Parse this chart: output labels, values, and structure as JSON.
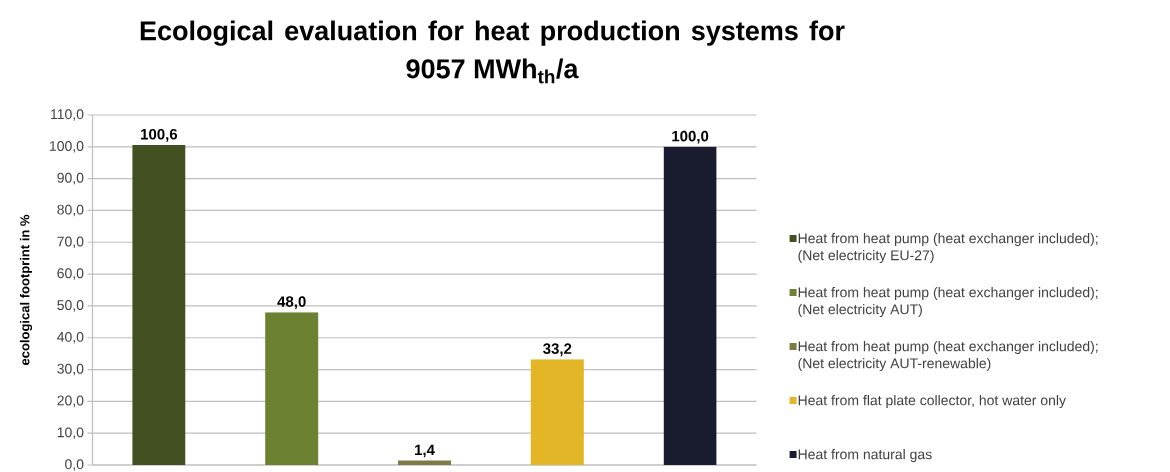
{
  "chart_data": {
    "type": "bar",
    "title": "Ecological evaluation for heat production systems for 9057 MWh$_{th}$/a",
    "ylabel": "ecological footprint in %",
    "categories": [
      null,
      null,
      null,
      null,
      null
    ],
    "series": [
      {
        "name": "Heat from heat pump (heat exchanger included); (Net electricity EU-27)",
        "color": "#435022",
        "values": [
          100.6,
          null,
          null,
          null,
          null
        ],
        "value_labels": [
          "100,6",
          null,
          null,
          null,
          null
        ]
      },
      {
        "name": "Heat from heat pump (heat exchanger included); (Net electricity AUT)",
        "color": "#6c8132",
        "values": [
          null,
          48.0,
          null,
          null,
          null
        ],
        "value_labels": [
          null,
          "48,0",
          null,
          null,
          null
        ]
      },
      {
        "name": "Heat from heat pump (heat exchanger included); (Net electricity AUT-renewable)",
        "color": "#7c7a45",
        "values": [
          null,
          null,
          1.4,
          null,
          null
        ],
        "value_labels": [
          null,
          null,
          "1,4",
          null,
          null
        ]
      },
      {
        "name": "Heat from flat plate collector, hot water only",
        "color": "#e2b627",
        "values": [
          null,
          null,
          null,
          33.2,
          null
        ],
        "value_labels": [
          null,
          null,
          null,
          "33,2",
          null
        ]
      },
      {
        "name": "Heat from natural gas",
        "color": "#191c2e",
        "values": [
          null,
          null,
          null,
          null,
          100.0
        ],
        "value_labels": [
          null,
          null,
          null,
          null,
          "100,0"
        ]
      }
    ],
    "ylim": [
      0,
      110
    ],
    "yticks": [
      {
        "value": 0,
        "label": "0,0"
      },
      {
        "value": 10,
        "label": "10,0"
      },
      {
        "value": 20,
        "label": "20,0"
      },
      {
        "value": 30,
        "label": "30,0"
      },
      {
        "value": 40,
        "label": "40,0"
      },
      {
        "value": 50,
        "label": "50,0"
      },
      {
        "value": 60,
        "label": "60,0"
      },
      {
        "value": 70,
        "label": "70,0"
      },
      {
        "value": 80,
        "label": "80,0"
      },
      {
        "value": 90,
        "label": "90,0"
      },
      {
        "value": 100,
        "label": "100,0"
      },
      {
        "value": 110,
        "label": "110,0"
      }
    ],
    "grid": "y",
    "legend": "right"
  }
}
